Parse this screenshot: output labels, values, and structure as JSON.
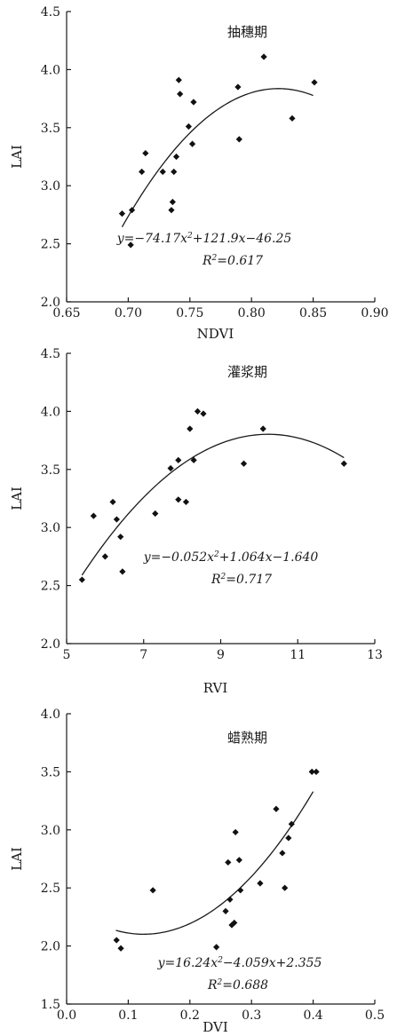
{
  "chart_data": [
    {
      "type": "scatter",
      "title": "抽穗期",
      "xlabel": "NDVI",
      "ylabel": "LAI",
      "xlim": [
        0.65,
        0.9
      ],
      "ylim": [
        2.0,
        4.5
      ],
      "xticks": [
        "0.65",
        "0.70",
        "0.75",
        "0.80",
        "0.85",
        "0.90"
      ],
      "yticks": [
        "2.0",
        "2.5",
        "3.0",
        "3.5",
        "4.0",
        "4.5"
      ],
      "equation": "y=−74.17x²+121.9x−46.25",
      "r2": "R²=0.617",
      "fit": {
        "a": -74.17,
        "b": 121.9,
        "c": -46.25,
        "x_from": 0.695,
        "x_to": 0.85
      },
      "points": [
        [
          0.695,
          2.76
        ],
        [
          0.702,
          2.49
        ],
        [
          0.703,
          2.79
        ],
        [
          0.711,
          3.12
        ],
        [
          0.714,
          3.28
        ],
        [
          0.728,
          3.12
        ],
        [
          0.735,
          2.79
        ],
        [
          0.736,
          2.86
        ],
        [
          0.737,
          3.12
        ],
        [
          0.739,
          3.25
        ],
        [
          0.741,
          3.91
        ],
        [
          0.742,
          3.79
        ],
        [
          0.749,
          3.51
        ],
        [
          0.752,
          3.36
        ],
        [
          0.753,
          3.72
        ],
        [
          0.789,
          3.85
        ],
        [
          0.79,
          3.4
        ],
        [
          0.81,
          4.11
        ],
        [
          0.833,
          3.58
        ],
        [
          0.851,
          3.89
        ]
      ],
      "grid": false,
      "legend": "none"
    },
    {
      "type": "scatter",
      "title": "灌浆期",
      "xlabel": "RVI",
      "ylabel": "LAI",
      "xlim": [
        5,
        13
      ],
      "ylim": [
        2.0,
        4.5
      ],
      "xticks": [
        "5",
        "7",
        "9",
        "11",
        "13"
      ],
      "yticks": [
        "2.0",
        "2.5",
        "3.0",
        "3.5",
        "4.0",
        "4.5"
      ],
      "equation": "y=−0.052x²+1.064x−1.640",
      "r2": "R²=0.717",
      "fit": {
        "a": -0.052,
        "b": 1.064,
        "c": -1.64,
        "x_from": 5.4,
        "x_to": 12.2
      },
      "points": [
        [
          5.4,
          2.55
        ],
        [
          5.7,
          3.1
        ],
        [
          6.0,
          2.75
        ],
        [
          6.2,
          3.22
        ],
        [
          6.3,
          3.07
        ],
        [
          6.4,
          2.92
        ],
        [
          6.45,
          2.62
        ],
        [
          7.3,
          3.12
        ],
        [
          7.7,
          3.51
        ],
        [
          7.9,
          3.58
        ],
        [
          7.9,
          3.24
        ],
        [
          8.1,
          3.22
        ],
        [
          8.2,
          3.85
        ],
        [
          8.3,
          3.58
        ],
        [
          8.4,
          4.0
        ],
        [
          8.55,
          3.98
        ],
        [
          9.6,
          3.55
        ],
        [
          10.1,
          3.85
        ],
        [
          12.2,
          3.55
        ]
      ],
      "grid": false,
      "legend": "none"
    },
    {
      "type": "scatter",
      "title": "蜡熟期",
      "xlabel": "DVI",
      "ylabel": "LAI",
      "xlim": [
        0.0,
        0.5
      ],
      "ylim": [
        1.5,
        4.0
      ],
      "xticks": [
        "0.0",
        "0.1",
        "0.2",
        "0.3",
        "0.4",
        "0.5"
      ],
      "yticks": [
        "1.5",
        "2.0",
        "2.5",
        "3.0",
        "3.5",
        "4.0"
      ],
      "equation": "y=16.24x²−4.059x+2.355",
      "r2": "R²=0.688",
      "fit": {
        "a": 16.24,
        "b": -4.059,
        "c": 2.355,
        "x_from": 0.08,
        "x_to": 0.4
      },
      "points": [
        [
          0.081,
          2.05
        ],
        [
          0.088,
          1.98
        ],
        [
          0.14,
          2.48
        ],
        [
          0.243,
          1.99
        ],
        [
          0.258,
          2.3
        ],
        [
          0.262,
          2.72
        ],
        [
          0.265,
          2.4
        ],
        [
          0.268,
          2.18
        ],
        [
          0.272,
          2.2
        ],
        [
          0.274,
          2.98
        ],
        [
          0.28,
          2.74
        ],
        [
          0.282,
          2.48
        ],
        [
          0.314,
          2.54
        ],
        [
          0.34,
          3.18
        ],
        [
          0.35,
          2.8
        ],
        [
          0.354,
          2.5
        ],
        [
          0.36,
          2.93
        ],
        [
          0.365,
          3.05
        ],
        [
          0.398,
          3.5
        ],
        [
          0.405,
          3.5
        ]
      ],
      "grid": false,
      "legend": "none"
    }
  ]
}
